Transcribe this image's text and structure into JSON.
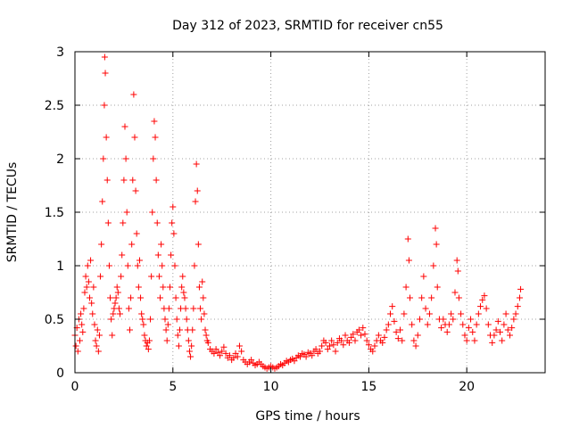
{
  "chart_data": {
    "type": "scatter",
    "title": "Day 312 of 2023, SRMTID for receiver cn55",
    "xlabel": "GPS time / hours",
    "ylabel": "SRMTID / TECUs",
    "xlim": [
      0,
      24
    ],
    "ylim": [
      0,
      3
    ],
    "xticks": [
      0,
      5,
      10,
      15,
      20
    ],
    "xtick_labels": [
      "0",
      "5",
      "10",
      "15",
      "20"
    ],
    "yticks": [
      0,
      0.5,
      1,
      1.5,
      2,
      2.5,
      3
    ],
    "ytick_labels": [
      "0",
      "0.5",
      "1",
      "1.5",
      "2",
      "2.5",
      "3"
    ],
    "grid": true,
    "marker": "+",
    "marker_color": "#ff0000",
    "series": [
      {
        "name": "SRMTID",
        "points": [
          [
            0.0,
            0.35
          ],
          [
            0.05,
            0.25
          ],
          [
            0.1,
            0.42
          ],
          [
            0.15,
            0.2
          ],
          [
            0.2,
            0.5
          ],
          [
            0.25,
            0.3
          ],
          [
            0.3,
            0.55
          ],
          [
            0.35,
            0.45
          ],
          [
            0.4,
            0.38
          ],
          [
            0.45,
            0.6
          ],
          [
            0.5,
            0.75
          ],
          [
            0.55,
            0.9
          ],
          [
            0.6,
            0.8
          ],
          [
            0.65,
            1.0
          ],
          [
            0.7,
            0.85
          ],
          [
            0.75,
            0.7
          ],
          [
            0.8,
            1.05
          ],
          [
            0.85,
            0.65
          ],
          [
            0.9,
            0.55
          ],
          [
            0.95,
            0.8
          ],
          [
            1.0,
            0.45
          ],
          [
            1.05,
            0.3
          ],
          [
            1.1,
            0.25
          ],
          [
            1.15,
            0.4
          ],
          [
            1.2,
            0.2
          ],
          [
            1.25,
            0.35
          ],
          [
            1.3,
            0.9
          ],
          [
            1.35,
            1.2
          ],
          [
            1.4,
            1.6
          ],
          [
            1.45,
            2.0
          ],
          [
            1.5,
            2.5
          ],
          [
            1.52,
            2.95
          ],
          [
            1.55,
            2.8
          ],
          [
            1.6,
            2.2
          ],
          [
            1.65,
            1.8
          ],
          [
            1.7,
            1.4
          ],
          [
            1.75,
            1.0
          ],
          [
            1.8,
            0.7
          ],
          [
            1.85,
            0.5
          ],
          [
            1.9,
            0.35
          ],
          [
            1.95,
            0.55
          ],
          [
            2.0,
            0.6
          ],
          [
            2.05,
            0.65
          ],
          [
            2.1,
            0.7
          ],
          [
            2.15,
            0.8
          ],
          [
            2.2,
            0.75
          ],
          [
            2.25,
            0.6
          ],
          [
            2.3,
            0.55
          ],
          [
            2.35,
            0.9
          ],
          [
            2.4,
            1.1
          ],
          [
            2.45,
            1.4
          ],
          [
            2.5,
            1.8
          ],
          [
            2.55,
            2.3
          ],
          [
            2.6,
            2.0
          ],
          [
            2.65,
            1.5
          ],
          [
            2.7,
            1.0
          ],
          [
            2.75,
            0.6
          ],
          [
            2.8,
            0.4
          ],
          [
            2.85,
            0.7
          ],
          [
            2.9,
            1.2
          ],
          [
            2.95,
            1.8
          ],
          [
            3.0,
            2.6
          ],
          [
            3.05,
            2.2
          ],
          [
            3.1,
            1.7
          ],
          [
            3.15,
            1.3
          ],
          [
            3.2,
            1.0
          ],
          [
            3.25,
            0.8
          ],
          [
            3.3,
            1.05
          ],
          [
            3.35,
            0.7
          ],
          [
            3.4,
            0.55
          ],
          [
            3.45,
            0.5
          ],
          [
            3.5,
            0.45
          ],
          [
            3.55,
            0.35
          ],
          [
            3.6,
            0.3
          ],
          [
            3.65,
            0.25
          ],
          [
            3.7,
            0.28
          ],
          [
            3.75,
            0.22
          ],
          [
            3.8,
            0.3
          ],
          [
            3.85,
            0.5
          ],
          [
            3.9,
            0.9
          ],
          [
            3.95,
            1.5
          ],
          [
            4.0,
            2.0
          ],
          [
            4.05,
            2.35
          ],
          [
            4.1,
            2.2
          ],
          [
            4.15,
            1.8
          ],
          [
            4.2,
            1.4
          ],
          [
            4.25,
            1.1
          ],
          [
            4.3,
            0.9
          ],
          [
            4.35,
            0.7
          ],
          [
            4.4,
            1.2
          ],
          [
            4.45,
            1.0
          ],
          [
            4.5,
            0.8
          ],
          [
            4.55,
            0.6
          ],
          [
            4.6,
            0.5
          ],
          [
            4.65,
            0.4
          ],
          [
            4.7,
            0.3
          ],
          [
            4.75,
            0.45
          ],
          [
            4.8,
            0.6
          ],
          [
            4.85,
            0.8
          ],
          [
            4.9,
            1.1
          ],
          [
            4.95,
            1.4
          ],
          [
            5.0,
            1.55
          ],
          [
            5.05,
            1.3
          ],
          [
            5.1,
            1.0
          ],
          [
            5.15,
            0.7
          ],
          [
            5.2,
            0.5
          ],
          [
            5.25,
            0.35
          ],
          [
            5.3,
            0.25
          ],
          [
            5.35,
            0.4
          ],
          [
            5.4,
            0.6
          ],
          [
            5.45,
            0.8
          ],
          [
            5.5,
            0.9
          ],
          [
            5.55,
            0.75
          ],
          [
            5.6,
            0.7
          ],
          [
            5.65,
            0.6
          ],
          [
            5.7,
            0.5
          ],
          [
            5.75,
            0.4
          ],
          [
            5.8,
            0.3
          ],
          [
            5.85,
            0.2
          ],
          [
            5.9,
            0.15
          ],
          [
            5.95,
            0.25
          ],
          [
            6.0,
            0.4
          ],
          [
            6.05,
            0.6
          ],
          [
            6.1,
            1.0
          ],
          [
            6.15,
            1.6
          ],
          [
            6.2,
            1.95
          ],
          [
            6.25,
            1.7
          ],
          [
            6.3,
            1.2
          ],
          [
            6.35,
            0.8
          ],
          [
            6.4,
            0.6
          ],
          [
            6.45,
            0.5
          ],
          [
            6.5,
            0.85
          ],
          [
            6.55,
            0.7
          ],
          [
            6.6,
            0.55
          ],
          [
            6.65,
            0.4
          ],
          [
            6.7,
            0.35
          ],
          [
            6.75,
            0.3
          ],
          [
            6.8,
            0.28
          ],
          [
            6.9,
            0.22
          ],
          [
            7.0,
            0.2
          ],
          [
            7.1,
            0.18
          ],
          [
            7.2,
            0.22
          ],
          [
            7.3,
            0.19
          ],
          [
            7.4,
            0.16
          ],
          [
            7.5,
            0.2
          ],
          [
            7.6,
            0.24
          ],
          [
            7.7,
            0.18
          ],
          [
            7.8,
            0.14
          ],
          [
            7.9,
            0.16
          ],
          [
            8.0,
            0.12
          ],
          [
            8.1,
            0.14
          ],
          [
            8.2,
            0.18
          ],
          [
            8.3,
            0.15
          ],
          [
            8.4,
            0.25
          ],
          [
            8.5,
            0.2
          ],
          [
            8.6,
            0.12
          ],
          [
            8.7,
            0.1
          ],
          [
            8.8,
            0.08
          ],
          [
            8.9,
            0.1
          ],
          [
            9.0,
            0.12
          ],
          [
            9.1,
            0.09
          ],
          [
            9.2,
            0.07
          ],
          [
            9.3,
            0.08
          ],
          [
            9.4,
            0.1
          ],
          [
            9.5,
            0.08
          ],
          [
            9.6,
            0.06
          ],
          [
            9.7,
            0.05
          ],
          [
            9.8,
            0.04
          ],
          [
            9.9,
            0.05
          ],
          [
            10.0,
            0.06
          ],
          [
            10.1,
            0.05
          ],
          [
            10.2,
            0.04
          ],
          [
            10.3,
            0.05
          ],
          [
            10.4,
            0.06
          ],
          [
            10.5,
            0.08
          ],
          [
            10.6,
            0.07
          ],
          [
            10.7,
            0.09
          ],
          [
            10.8,
            0.11
          ],
          [
            10.9,
            0.1
          ],
          [
            11.0,
            0.12
          ],
          [
            11.1,
            0.13
          ],
          [
            11.2,
            0.11
          ],
          [
            11.3,
            0.14
          ],
          [
            11.4,
            0.16
          ],
          [
            11.5,
            0.15
          ],
          [
            11.6,
            0.18
          ],
          [
            11.7,
            0.17
          ],
          [
            11.8,
            0.15
          ],
          [
            11.9,
            0.19
          ],
          [
            12.0,
            0.18
          ],
          [
            12.1,
            0.16
          ],
          [
            12.2,
            0.2
          ],
          [
            12.3,
            0.22
          ],
          [
            12.4,
            0.18
          ],
          [
            12.5,
            0.2
          ],
          [
            12.6,
            0.25
          ],
          [
            12.7,
            0.3
          ],
          [
            12.8,
            0.28
          ],
          [
            12.9,
            0.22
          ],
          [
            13.0,
            0.25
          ],
          [
            13.1,
            0.3
          ],
          [
            13.2,
            0.26
          ],
          [
            13.3,
            0.2
          ],
          [
            13.4,
            0.28
          ],
          [
            13.5,
            0.32
          ],
          [
            13.6,
            0.3
          ],
          [
            13.7,
            0.26
          ],
          [
            13.8,
            0.35
          ],
          [
            13.9,
            0.3
          ],
          [
            14.0,
            0.28
          ],
          [
            14.1,
            0.33
          ],
          [
            14.2,
            0.36
          ],
          [
            14.3,
            0.3
          ],
          [
            14.4,
            0.38
          ],
          [
            14.5,
            0.4
          ],
          [
            14.6,
            0.35
          ],
          [
            14.7,
            0.42
          ],
          [
            14.8,
            0.36
          ],
          [
            14.9,
            0.3
          ],
          [
            15.0,
            0.26
          ],
          [
            15.1,
            0.22
          ],
          [
            15.2,
            0.2
          ],
          [
            15.3,
            0.25
          ],
          [
            15.4,
            0.3
          ],
          [
            15.5,
            0.35
          ],
          [
            15.6,
            0.3
          ],
          [
            15.7,
            0.28
          ],
          [
            15.8,
            0.33
          ],
          [
            15.9,
            0.4
          ],
          [
            16.0,
            0.45
          ],
          [
            16.1,
            0.55
          ],
          [
            16.2,
            0.62
          ],
          [
            16.3,
            0.48
          ],
          [
            16.4,
            0.38
          ],
          [
            16.5,
            0.32
          ],
          [
            16.6,
            0.4
          ],
          [
            16.7,
            0.3
          ],
          [
            16.8,
            0.55
          ],
          [
            16.9,
            0.8
          ],
          [
            17.0,
            1.25
          ],
          [
            17.05,
            1.05
          ],
          [
            17.1,
            0.7
          ],
          [
            17.2,
            0.45
          ],
          [
            17.3,
            0.3
          ],
          [
            17.4,
            0.25
          ],
          [
            17.5,
            0.35
          ],
          [
            17.6,
            0.5
          ],
          [
            17.7,
            0.7
          ],
          [
            17.8,
            0.9
          ],
          [
            17.9,
            0.6
          ],
          [
            18.0,
            0.45
          ],
          [
            18.1,
            0.55
          ],
          [
            18.2,
            0.7
          ],
          [
            18.3,
            1.0
          ],
          [
            18.4,
            1.35
          ],
          [
            18.45,
            1.2
          ],
          [
            18.5,
            0.8
          ],
          [
            18.6,
            0.5
          ],
          [
            18.7,
            0.42
          ],
          [
            18.8,
            0.5
          ],
          [
            18.9,
            0.45
          ],
          [
            19.0,
            0.38
          ],
          [
            19.1,
            0.45
          ],
          [
            19.2,
            0.55
          ],
          [
            19.3,
            0.5
          ],
          [
            19.4,
            0.75
          ],
          [
            19.5,
            1.05
          ],
          [
            19.55,
            0.95
          ],
          [
            19.6,
            0.7
          ],
          [
            19.7,
            0.55
          ],
          [
            19.8,
            0.45
          ],
          [
            19.9,
            0.35
          ],
          [
            20.0,
            0.3
          ],
          [
            20.1,
            0.42
          ],
          [
            20.2,
            0.5
          ],
          [
            20.3,
            0.38
          ],
          [
            20.4,
            0.3
          ],
          [
            20.5,
            0.45
          ],
          [
            20.6,
            0.55
          ],
          [
            20.7,
            0.62
          ],
          [
            20.8,
            0.68
          ],
          [
            20.9,
            0.72
          ],
          [
            21.0,
            0.6
          ],
          [
            21.1,
            0.45
          ],
          [
            21.2,
            0.35
          ],
          [
            21.3,
            0.28
          ],
          [
            21.4,
            0.35
          ],
          [
            21.5,
            0.4
          ],
          [
            21.6,
            0.48
          ],
          [
            21.7,
            0.38
          ],
          [
            21.8,
            0.3
          ],
          [
            21.9,
            0.45
          ],
          [
            22.0,
            0.55
          ],
          [
            22.1,
            0.4
          ],
          [
            22.2,
            0.35
          ],
          [
            22.3,
            0.42
          ],
          [
            22.4,
            0.5
          ],
          [
            22.5,
            0.55
          ],
          [
            22.6,
            0.62
          ],
          [
            22.7,
            0.7
          ],
          [
            22.75,
            0.78
          ]
        ]
      }
    ]
  }
}
